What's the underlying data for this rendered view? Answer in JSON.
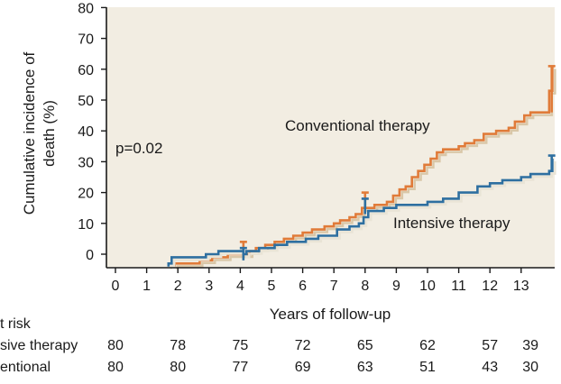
{
  "chart_data": {
    "type": "line",
    "ylabel_lines": [
      "Cumulative incidence of",
      "death (%)"
    ],
    "xlabel": "Years of follow-up",
    "xlim": [
      0,
      14.2
    ],
    "ylim": [
      -4,
      80
    ],
    "x_ticks": [
      0,
      1,
      2,
      3,
      4,
      5,
      6,
      7,
      8,
      9,
      10,
      11,
      12,
      13
    ],
    "y_ticks": [
      0,
      10,
      20,
      30,
      40,
      50,
      60,
      70,
      80
    ],
    "grid": false,
    "plot_background": "#f2ede2",
    "annotations": {
      "p_value": "p=0.02",
      "conventional_label": "Conventional therapy",
      "intensive_label": "Intensive therapy"
    },
    "series": [
      {
        "name": "Conventional therapy",
        "color": "#e07b39",
        "band_color": "#d9c7a8",
        "points": [
          [
            1.9,
            -4
          ],
          [
            1.9,
            -3
          ],
          [
            2.7,
            -3
          ],
          [
            2.7,
            -2
          ],
          [
            3.1,
            -2
          ],
          [
            3.1,
            -1
          ],
          [
            3.6,
            -1
          ],
          [
            3.6,
            0
          ],
          [
            4.3,
            0
          ],
          [
            4.3,
            1
          ],
          [
            4.5,
            1
          ],
          [
            4.5,
            2
          ],
          [
            4.8,
            2
          ],
          [
            4.8,
            3
          ],
          [
            5.1,
            3
          ],
          [
            5.1,
            4
          ],
          [
            5.4,
            4
          ],
          [
            5.4,
            5
          ],
          [
            5.7,
            5
          ],
          [
            5.7,
            6
          ],
          [
            6.0,
            6
          ],
          [
            6.0,
            7
          ],
          [
            6.3,
            7
          ],
          [
            6.3,
            8
          ],
          [
            6.7,
            8
          ],
          [
            6.7,
            9
          ],
          [
            7.0,
            9
          ],
          [
            7.0,
            10
          ],
          [
            7.2,
            10
          ],
          [
            7.2,
            11
          ],
          [
            7.5,
            11
          ],
          [
            7.5,
            12
          ],
          [
            7.7,
            12
          ],
          [
            7.7,
            13
          ],
          [
            7.9,
            13
          ],
          [
            7.9,
            15
          ],
          [
            8.3,
            15
          ],
          [
            8.3,
            16
          ],
          [
            8.7,
            16
          ],
          [
            8.7,
            17
          ],
          [
            8.9,
            17
          ],
          [
            8.9,
            19
          ],
          [
            9.1,
            19
          ],
          [
            9.1,
            21
          ],
          [
            9.3,
            21
          ],
          [
            9.3,
            22
          ],
          [
            9.5,
            22
          ],
          [
            9.5,
            25
          ],
          [
            9.7,
            25
          ],
          [
            9.7,
            27
          ],
          [
            9.9,
            27
          ],
          [
            9.9,
            29
          ],
          [
            10.1,
            29
          ],
          [
            10.1,
            31
          ],
          [
            10.3,
            31
          ],
          [
            10.3,
            33
          ],
          [
            10.5,
            33
          ],
          [
            10.5,
            34
          ],
          [
            11.0,
            34
          ],
          [
            11.0,
            35
          ],
          [
            11.2,
            35
          ],
          [
            11.2,
            36
          ],
          [
            11.5,
            36
          ],
          [
            11.5,
            37
          ],
          [
            11.8,
            37
          ],
          [
            11.8,
            39
          ],
          [
            12.2,
            39
          ],
          [
            12.2,
            40
          ],
          [
            12.6,
            40
          ],
          [
            12.6,
            41
          ],
          [
            12.8,
            41
          ],
          [
            12.8,
            43
          ],
          [
            13.1,
            43
          ],
          [
            13.1,
            45
          ],
          [
            13.3,
            45
          ],
          [
            13.3,
            46
          ],
          [
            13.9,
            46
          ],
          [
            13.9,
            53
          ],
          [
            14.0,
            53
          ],
          [
            14.0,
            61
          ]
        ],
        "censor_marks": [
          [
            4.1,
            0,
            4
          ],
          [
            8.0,
            15,
            20
          ],
          [
            13.98,
            46,
            61
          ]
        ]
      },
      {
        "name": "Intensive therapy",
        "color": "#2e6fa0",
        "band_color": "#e9e4d6",
        "points": [
          [
            1.7,
            -4
          ],
          [
            1.7,
            -3
          ],
          [
            1.8,
            -3
          ],
          [
            1.8,
            -1
          ],
          [
            2.9,
            -1
          ],
          [
            2.9,
            0
          ],
          [
            3.3,
            0
          ],
          [
            3.3,
            1
          ],
          [
            4.1,
            1
          ],
          [
            4.1,
            0
          ],
          [
            4.2,
            0
          ],
          [
            4.2,
            1
          ],
          [
            4.6,
            1
          ],
          [
            4.6,
            2
          ],
          [
            5.1,
            2
          ],
          [
            5.1,
            3
          ],
          [
            5.5,
            3
          ],
          [
            5.5,
            4
          ],
          [
            6.1,
            4
          ],
          [
            6.1,
            5
          ],
          [
            6.5,
            5
          ],
          [
            6.5,
            6
          ],
          [
            7.1,
            6
          ],
          [
            7.1,
            8
          ],
          [
            7.5,
            8
          ],
          [
            7.5,
            9
          ],
          [
            7.8,
            9
          ],
          [
            7.8,
            10
          ],
          [
            7.95,
            10
          ],
          [
            7.95,
            12
          ],
          [
            8.1,
            12
          ],
          [
            8.1,
            14
          ],
          [
            8.6,
            14
          ],
          [
            8.6,
            15
          ],
          [
            9.0,
            15
          ],
          [
            9.0,
            16
          ],
          [
            10.0,
            16
          ],
          [
            10.0,
            17
          ],
          [
            10.5,
            17
          ],
          [
            10.5,
            18
          ],
          [
            11.0,
            18
          ],
          [
            11.0,
            20
          ],
          [
            11.6,
            20
          ],
          [
            11.6,
            22
          ],
          [
            12.0,
            22
          ],
          [
            12.0,
            23
          ],
          [
            12.4,
            23
          ],
          [
            12.4,
            24
          ],
          [
            13.0,
            24
          ],
          [
            13.0,
            25
          ],
          [
            13.3,
            25
          ],
          [
            13.3,
            26
          ],
          [
            13.9,
            26
          ],
          [
            13.9,
            27
          ],
          [
            14.0,
            27
          ],
          [
            14.0,
            31
          ]
        ],
        "censor_marks": [
          [
            4.1,
            -2,
            2
          ],
          [
            8.0,
            13,
            18
          ],
          [
            13.98,
            27,
            32
          ]
        ]
      }
    ],
    "risk_table": {
      "header": "t risk",
      "rows": [
        {
          "label": "sive therapy",
          "values": [
            "80",
            "78",
            "75",
            "72",
            "65",
            "62",
            "57",
            "39"
          ]
        },
        {
          "label": "entional",
          "values": [
            "80",
            "80",
            "77",
            "69",
            "63",
            "51",
            "43",
            "30"
          ]
        }
      ],
      "value_positions": [
        0,
        2,
        4,
        6,
        8,
        10,
        12,
        13.3
      ]
    }
  }
}
